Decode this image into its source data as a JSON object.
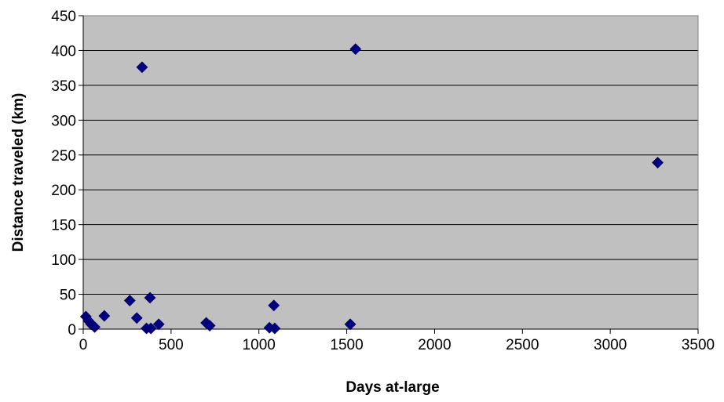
{
  "chart_data": {
    "type": "scatter",
    "title": "",
    "xlabel": "Days at-large",
    "ylabel": "Distance traveled (km)",
    "xlim": [
      0,
      3500
    ],
    "ylim": [
      0,
      450
    ],
    "xticks": [
      0,
      500,
      1000,
      1500,
      2000,
      2500,
      3000,
      3500
    ],
    "yticks": [
      0,
      50,
      100,
      150,
      200,
      250,
      300,
      350,
      400,
      450
    ],
    "grid": "horizontal major gridlines",
    "legend": "none",
    "plot_background": "#c0c0c0",
    "marker": "diamond",
    "marker_color": "#000080",
    "series": [
      {
        "points": [
          {
            "x": 15,
            "y": 18
          },
          {
            "x": 30,
            "y": 12
          },
          {
            "x": 45,
            "y": 7
          },
          {
            "x": 65,
            "y": 3
          },
          {
            "x": 120,
            "y": 19
          },
          {
            "x": 265,
            "y": 41
          },
          {
            "x": 305,
            "y": 16
          },
          {
            "x": 335,
            "y": 376
          },
          {
            "x": 360,
            "y": 1
          },
          {
            "x": 380,
            "y": 45
          },
          {
            "x": 385,
            "y": 1
          },
          {
            "x": 430,
            "y": 7
          },
          {
            "x": 700,
            "y": 9
          },
          {
            "x": 720,
            "y": 5
          },
          {
            "x": 1060,
            "y": 2
          },
          {
            "x": 1085,
            "y": 34
          },
          {
            "x": 1090,
            "y": 1
          },
          {
            "x": 1520,
            "y": 7
          },
          {
            "x": 1550,
            "y": 402
          },
          {
            "x": 3270,
            "y": 239
          }
        ]
      }
    ]
  }
}
